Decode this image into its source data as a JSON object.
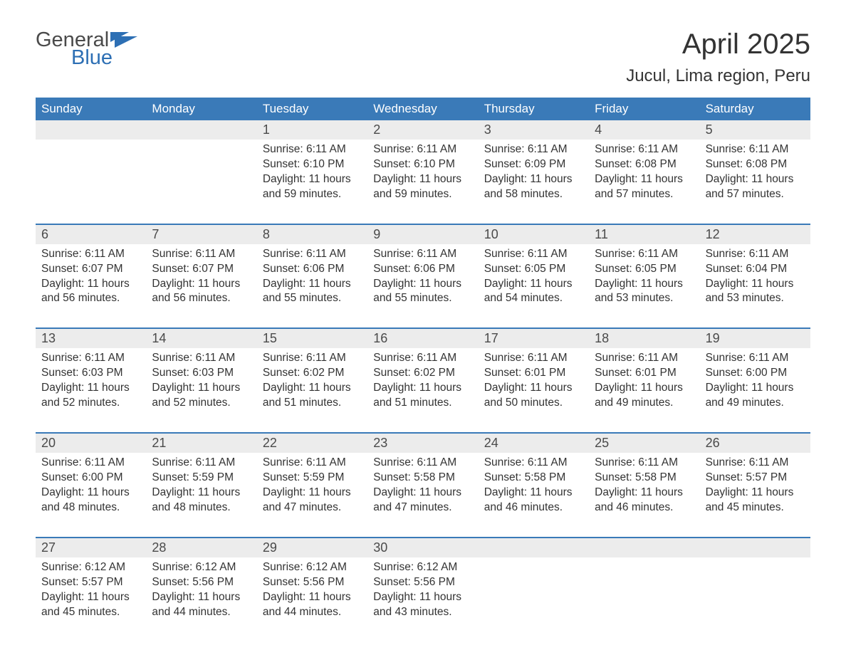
{
  "logo": {
    "text1": "General",
    "text2": "Blue"
  },
  "title": "April 2025",
  "location": "Jucul, Lima region, Peru",
  "colors": {
    "header_bg": "#3a7ab8",
    "header_text": "#ffffff",
    "daynum_bg": "#ececec",
    "week_divider": "#3a7ab8",
    "body_text": "#333333",
    "logo_general": "#4a4a4a",
    "logo_blue": "#2d6fb4",
    "logo_icon": "#2d6fb4",
    "background": "#ffffff"
  },
  "typography": {
    "title_fontsize": 40,
    "location_fontsize": 24,
    "dayheader_fontsize": 17,
    "daynum_fontsize": 18,
    "body_fontsize": 15.5,
    "font_family": "Segoe UI"
  },
  "day_labels": [
    "Sunday",
    "Monday",
    "Tuesday",
    "Wednesday",
    "Thursday",
    "Friday",
    "Saturday"
  ],
  "weeks": [
    [
      {
        "n": "",
        "sunrise": "",
        "sunset": "",
        "daylight": ""
      },
      {
        "n": "",
        "sunrise": "",
        "sunset": "",
        "daylight": ""
      },
      {
        "n": "1",
        "sunrise": "Sunrise: 6:11 AM",
        "sunset": "Sunset: 6:10 PM",
        "daylight": "Daylight: 11 hours and 59 minutes."
      },
      {
        "n": "2",
        "sunrise": "Sunrise: 6:11 AM",
        "sunset": "Sunset: 6:10 PM",
        "daylight": "Daylight: 11 hours and 59 minutes."
      },
      {
        "n": "3",
        "sunrise": "Sunrise: 6:11 AM",
        "sunset": "Sunset: 6:09 PM",
        "daylight": "Daylight: 11 hours and 58 minutes."
      },
      {
        "n": "4",
        "sunrise": "Sunrise: 6:11 AM",
        "sunset": "Sunset: 6:08 PM",
        "daylight": "Daylight: 11 hours and 57 minutes."
      },
      {
        "n": "5",
        "sunrise": "Sunrise: 6:11 AM",
        "sunset": "Sunset: 6:08 PM",
        "daylight": "Daylight: 11 hours and 57 minutes."
      }
    ],
    [
      {
        "n": "6",
        "sunrise": "Sunrise: 6:11 AM",
        "sunset": "Sunset: 6:07 PM",
        "daylight": "Daylight: 11 hours and 56 minutes."
      },
      {
        "n": "7",
        "sunrise": "Sunrise: 6:11 AM",
        "sunset": "Sunset: 6:07 PM",
        "daylight": "Daylight: 11 hours and 56 minutes."
      },
      {
        "n": "8",
        "sunrise": "Sunrise: 6:11 AM",
        "sunset": "Sunset: 6:06 PM",
        "daylight": "Daylight: 11 hours and 55 minutes."
      },
      {
        "n": "9",
        "sunrise": "Sunrise: 6:11 AM",
        "sunset": "Sunset: 6:06 PM",
        "daylight": "Daylight: 11 hours and 55 minutes."
      },
      {
        "n": "10",
        "sunrise": "Sunrise: 6:11 AM",
        "sunset": "Sunset: 6:05 PM",
        "daylight": "Daylight: 11 hours and 54 minutes."
      },
      {
        "n": "11",
        "sunrise": "Sunrise: 6:11 AM",
        "sunset": "Sunset: 6:05 PM",
        "daylight": "Daylight: 11 hours and 53 minutes."
      },
      {
        "n": "12",
        "sunrise": "Sunrise: 6:11 AM",
        "sunset": "Sunset: 6:04 PM",
        "daylight": "Daylight: 11 hours and 53 minutes."
      }
    ],
    [
      {
        "n": "13",
        "sunrise": "Sunrise: 6:11 AM",
        "sunset": "Sunset: 6:03 PM",
        "daylight": "Daylight: 11 hours and 52 minutes."
      },
      {
        "n": "14",
        "sunrise": "Sunrise: 6:11 AM",
        "sunset": "Sunset: 6:03 PM",
        "daylight": "Daylight: 11 hours and 52 minutes."
      },
      {
        "n": "15",
        "sunrise": "Sunrise: 6:11 AM",
        "sunset": "Sunset: 6:02 PM",
        "daylight": "Daylight: 11 hours and 51 minutes."
      },
      {
        "n": "16",
        "sunrise": "Sunrise: 6:11 AM",
        "sunset": "Sunset: 6:02 PM",
        "daylight": "Daylight: 11 hours and 51 minutes."
      },
      {
        "n": "17",
        "sunrise": "Sunrise: 6:11 AM",
        "sunset": "Sunset: 6:01 PM",
        "daylight": "Daylight: 11 hours and 50 minutes."
      },
      {
        "n": "18",
        "sunrise": "Sunrise: 6:11 AM",
        "sunset": "Sunset: 6:01 PM",
        "daylight": "Daylight: 11 hours and 49 minutes."
      },
      {
        "n": "19",
        "sunrise": "Sunrise: 6:11 AM",
        "sunset": "Sunset: 6:00 PM",
        "daylight": "Daylight: 11 hours and 49 minutes."
      }
    ],
    [
      {
        "n": "20",
        "sunrise": "Sunrise: 6:11 AM",
        "sunset": "Sunset: 6:00 PM",
        "daylight": "Daylight: 11 hours and 48 minutes."
      },
      {
        "n": "21",
        "sunrise": "Sunrise: 6:11 AM",
        "sunset": "Sunset: 5:59 PM",
        "daylight": "Daylight: 11 hours and 48 minutes."
      },
      {
        "n": "22",
        "sunrise": "Sunrise: 6:11 AM",
        "sunset": "Sunset: 5:59 PM",
        "daylight": "Daylight: 11 hours and 47 minutes."
      },
      {
        "n": "23",
        "sunrise": "Sunrise: 6:11 AM",
        "sunset": "Sunset: 5:58 PM",
        "daylight": "Daylight: 11 hours and 47 minutes."
      },
      {
        "n": "24",
        "sunrise": "Sunrise: 6:11 AM",
        "sunset": "Sunset: 5:58 PM",
        "daylight": "Daylight: 11 hours and 46 minutes."
      },
      {
        "n": "25",
        "sunrise": "Sunrise: 6:11 AM",
        "sunset": "Sunset: 5:58 PM",
        "daylight": "Daylight: 11 hours and 46 minutes."
      },
      {
        "n": "26",
        "sunrise": "Sunrise: 6:11 AM",
        "sunset": "Sunset: 5:57 PM",
        "daylight": "Daylight: 11 hours and 45 minutes."
      }
    ],
    [
      {
        "n": "27",
        "sunrise": "Sunrise: 6:12 AM",
        "sunset": "Sunset: 5:57 PM",
        "daylight": "Daylight: 11 hours and 45 minutes."
      },
      {
        "n": "28",
        "sunrise": "Sunrise: 6:12 AM",
        "sunset": "Sunset: 5:56 PM",
        "daylight": "Daylight: 11 hours and 44 minutes."
      },
      {
        "n": "29",
        "sunrise": "Sunrise: 6:12 AM",
        "sunset": "Sunset: 5:56 PM",
        "daylight": "Daylight: 11 hours and 44 minutes."
      },
      {
        "n": "30",
        "sunrise": "Sunrise: 6:12 AM",
        "sunset": "Sunset: 5:56 PM",
        "daylight": "Daylight: 11 hours and 43 minutes."
      },
      {
        "n": "",
        "sunrise": "",
        "sunset": "",
        "daylight": ""
      },
      {
        "n": "",
        "sunrise": "",
        "sunset": "",
        "daylight": ""
      },
      {
        "n": "",
        "sunrise": "",
        "sunset": "",
        "daylight": ""
      }
    ]
  ]
}
